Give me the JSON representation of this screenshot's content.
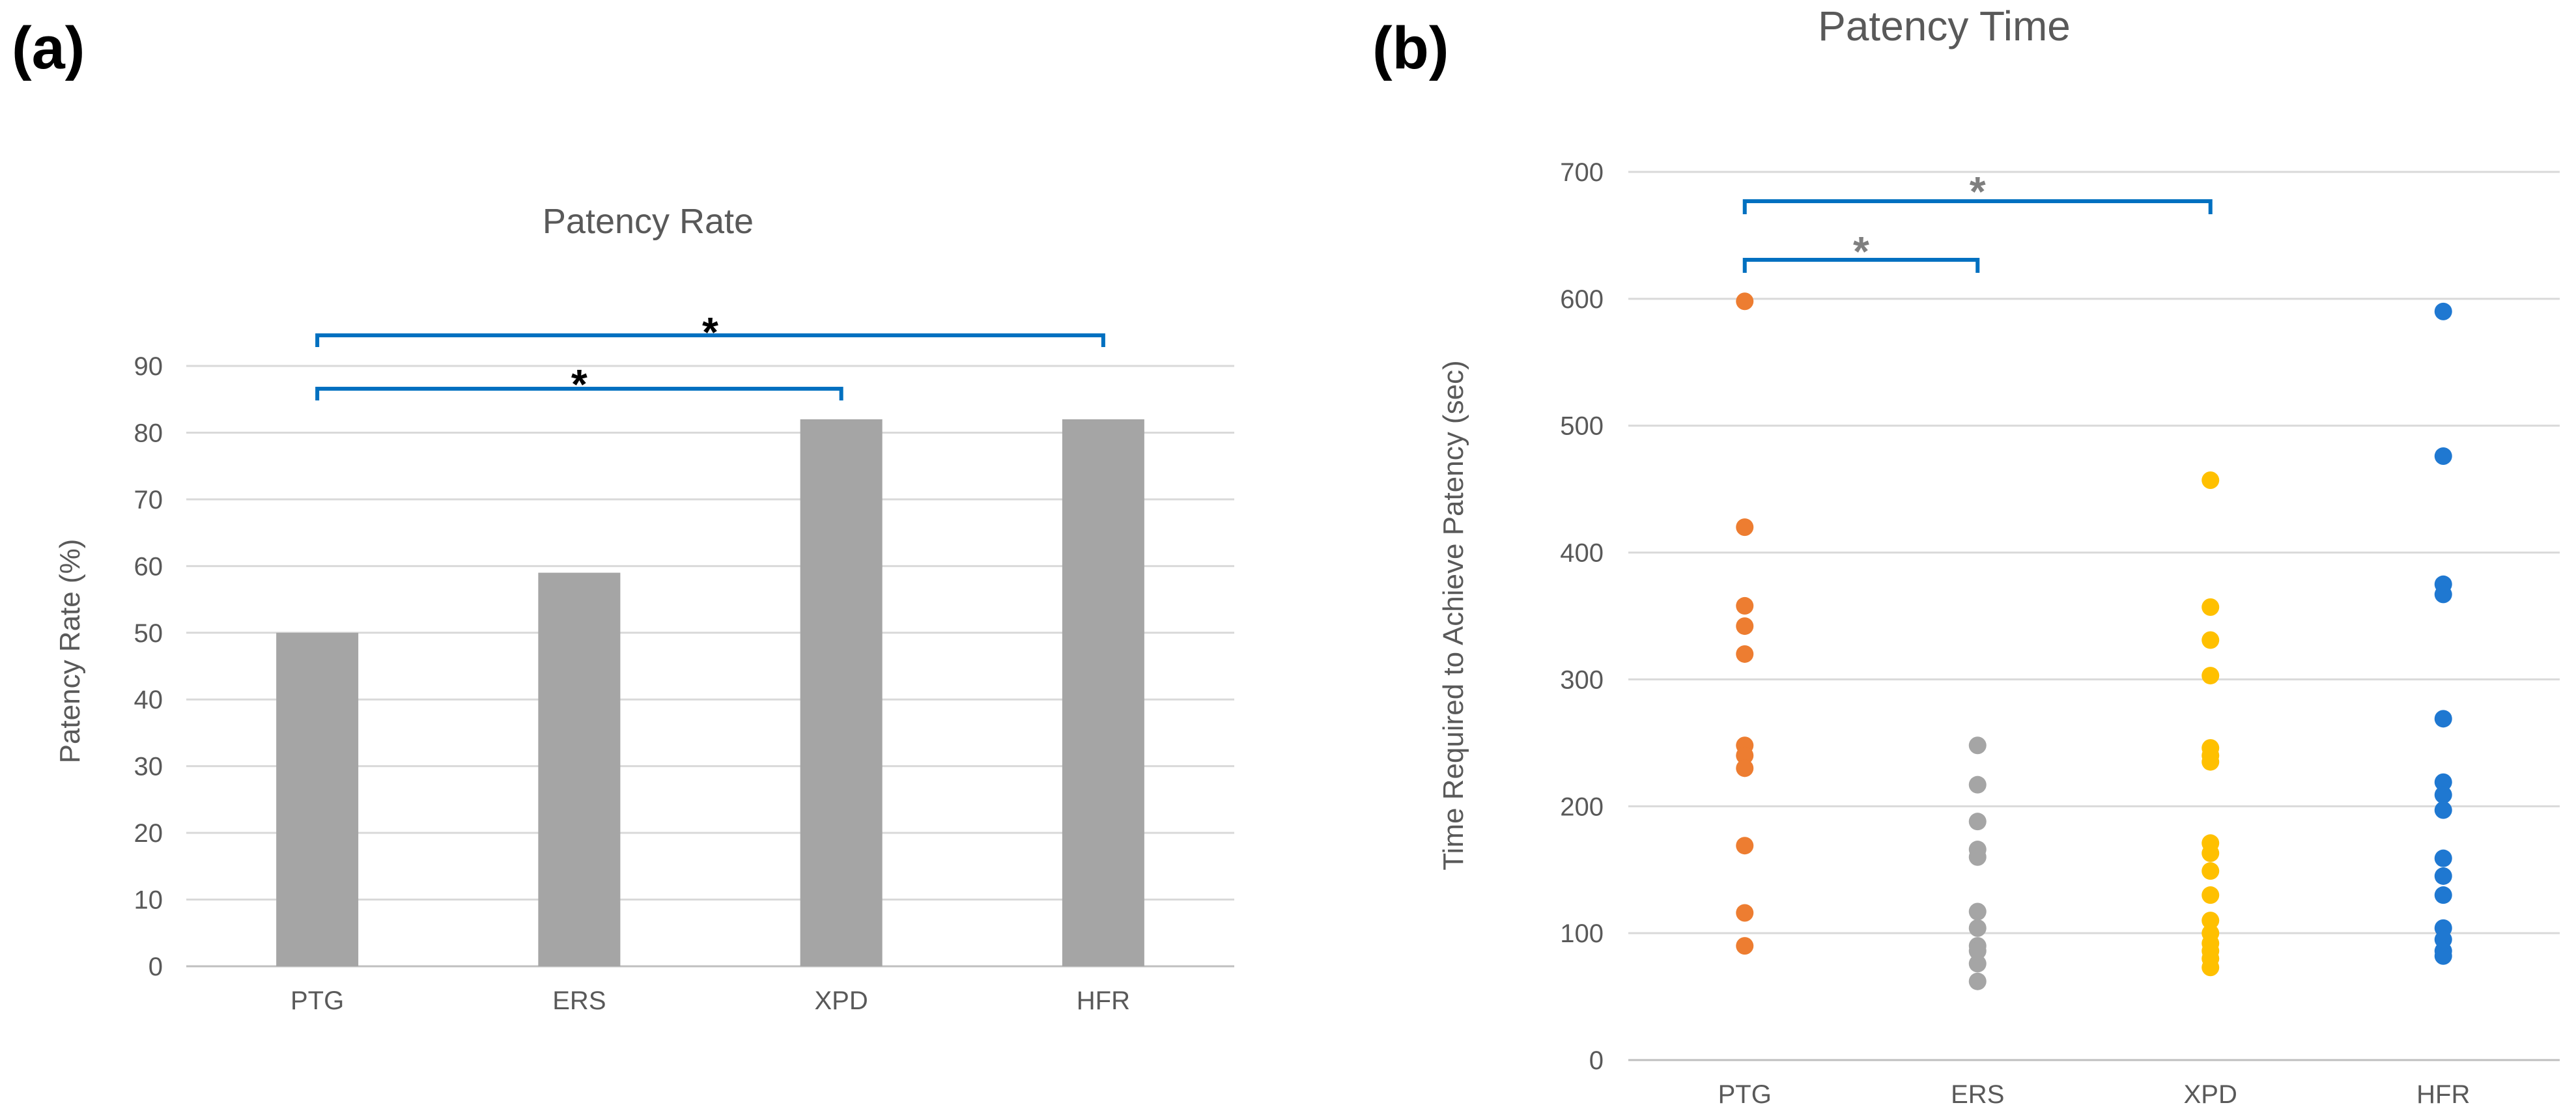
{
  "panels": {
    "a": {
      "label": "(a)"
    },
    "b": {
      "label": "(b)"
    }
  },
  "chart_data": [
    {
      "type": "bar",
      "title": "Patency Rate",
      "xlabel": "",
      "ylabel": "Patency Rate (%)",
      "categories": [
        "PTG",
        "ERS",
        "XPD",
        "HFR"
      ],
      "values": [
        50,
        59,
        82,
        82
      ],
      "ylim": [
        0,
        90
      ],
      "yticks": [
        "0",
        "10",
        "20",
        "30",
        "40",
        "50",
        "60",
        "70",
        "80",
        "90"
      ],
      "grid": true,
      "bar_color": "#a5a5a5",
      "significance": [
        {
          "from": "PTG",
          "to": "XPD",
          "label": "*"
        },
        {
          "from": "PTG",
          "to": "HFR",
          "label": "*"
        }
      ],
      "bracket_color": "#0070c0",
      "star_color": "#000000"
    },
    {
      "type": "scatter",
      "title": "Patency Time",
      "xlabel": "",
      "ylabel": "Time Required to Achieve Patency (sec)",
      "categories": [
        "PTG",
        "ERS",
        "XPD",
        "HFR"
      ],
      "ylim": [
        0,
        700
      ],
      "yticks": [
        "0",
        "100",
        "200",
        "300",
        "400",
        "500",
        "600",
        "700"
      ],
      "grid": true,
      "series": [
        {
          "name": "PTG",
          "color": "#ed7d31",
          "values": [
            598,
            420,
            358,
            342,
            320,
            248,
            240,
            230,
            169,
            116,
            90
          ]
        },
        {
          "name": "ERS",
          "color": "#a5a5a5",
          "values": [
            248,
            217,
            188,
            166,
            160,
            117,
            104,
            90,
            86,
            76,
            62
          ]
        },
        {
          "name": "XPD",
          "color": "#ffc000",
          "values": [
            457,
            357,
            331,
            303,
            246,
            240,
            235,
            171,
            163,
            149,
            130,
            110,
            100,
            92,
            86,
            80,
            73
          ]
        },
        {
          "name": "HFR",
          "color": "#1f78d1",
          "values": [
            590,
            476,
            375,
            367,
            269,
            219,
            209,
            197,
            159,
            145,
            130,
            104,
            95,
            86,
            82
          ]
        }
      ],
      "significance": [
        {
          "from": "PTG",
          "to": "ERS",
          "label": "*"
        },
        {
          "from": "PTG",
          "to": "XPD",
          "label": "*"
        }
      ],
      "bracket_color": "#0070c0",
      "star_color": "#7f7f7f"
    }
  ]
}
